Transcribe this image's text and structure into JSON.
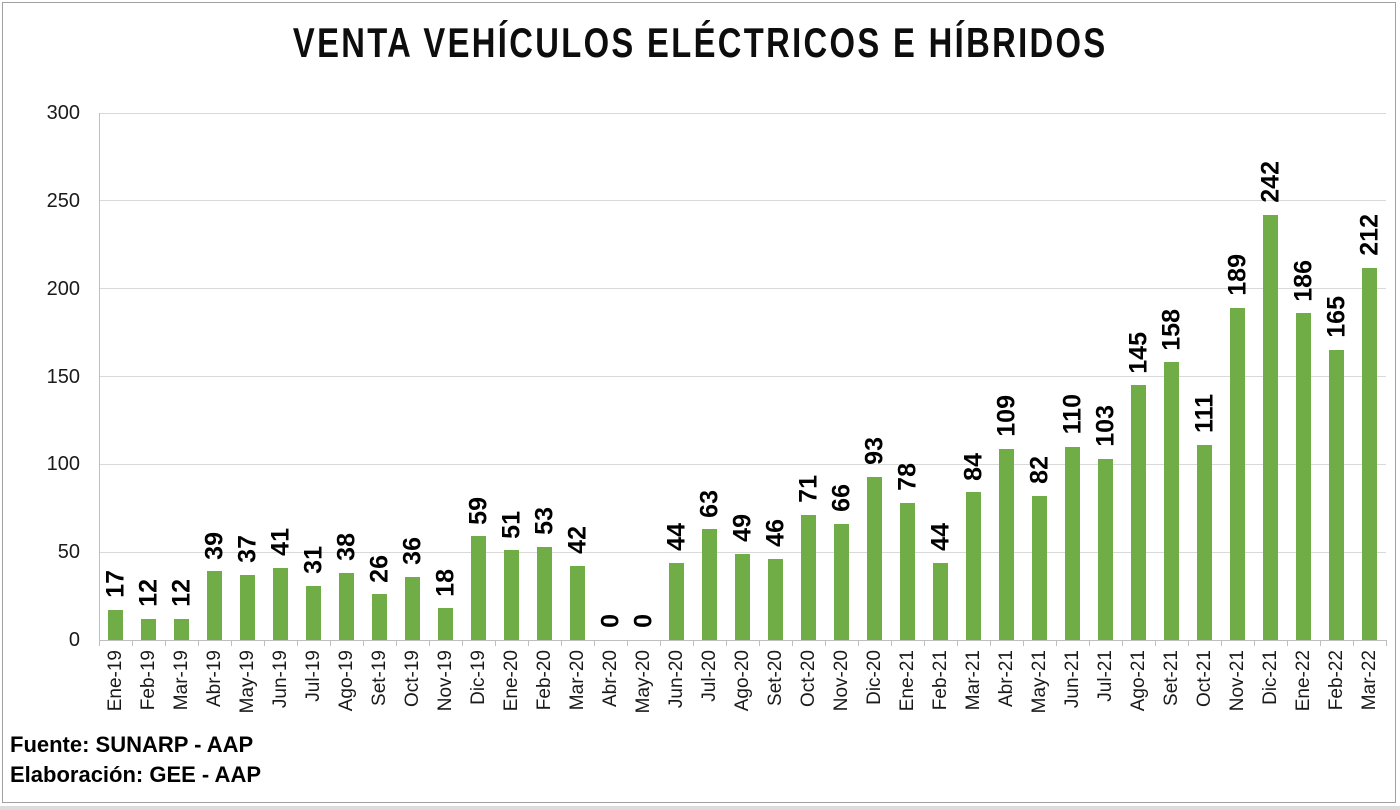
{
  "chart": {
    "title": "VENTA VEHÍCULOS ELÉCTRICOS E HÍBRIDOS"
  },
  "chart_data": {
    "type": "bar",
    "title": "VENTA VEHÍCULOS ELÉCTRICOS E HÍBRIDOS",
    "categories": [
      "Ene-19",
      "Feb-19",
      "Mar-19",
      "Abr-19",
      "May-19",
      "Jun-19",
      "Jul-19",
      "Ago-19",
      "Set-19",
      "Oct-19",
      "Nov-19",
      "Dic-19",
      "Ene-20",
      "Feb-20",
      "Mar-20",
      "Abr-20",
      "May-20",
      "Jun-20",
      "Jul-20",
      "Ago-20",
      "Set-20",
      "Oct-20",
      "Nov-20",
      "Dic-20",
      "Ene-21",
      "Feb-21",
      "Mar-21",
      "Abr-21",
      "May-21",
      "Jun-21",
      "Jul-21",
      "Ago-21",
      "Set-21",
      "Oct-21",
      "Nov-21",
      "Dic-21",
      "Ene-22",
      "Feb-22",
      "Mar-22"
    ],
    "values": [
      17,
      12,
      12,
      39,
      37,
      41,
      31,
      38,
      26,
      36,
      18,
      59,
      51,
      53,
      42,
      0,
      0,
      44,
      63,
      49,
      46,
      71,
      66,
      93,
      78,
      44,
      84,
      109,
      82,
      110,
      103,
      145,
      158,
      111,
      189,
      242,
      186,
      165,
      212
    ],
    "xlabel": "",
    "ylabel": "",
    "ylim": [
      0,
      300
    ],
    "yticks": [
      0,
      50,
      100,
      150,
      200,
      250,
      300
    ],
    "grid": true,
    "legend": false,
    "data_labels": true,
    "bar_color": "#70AD47"
  },
  "colors": {
    "bar": "#70AD47",
    "gridline": "#D9D9D9",
    "axis": "#BFBFBF",
    "text": "#000000"
  },
  "footer": {
    "source": "Fuente: SUNARP - AAP",
    "elaboration": "Elaboración: GEE - AAP"
  }
}
